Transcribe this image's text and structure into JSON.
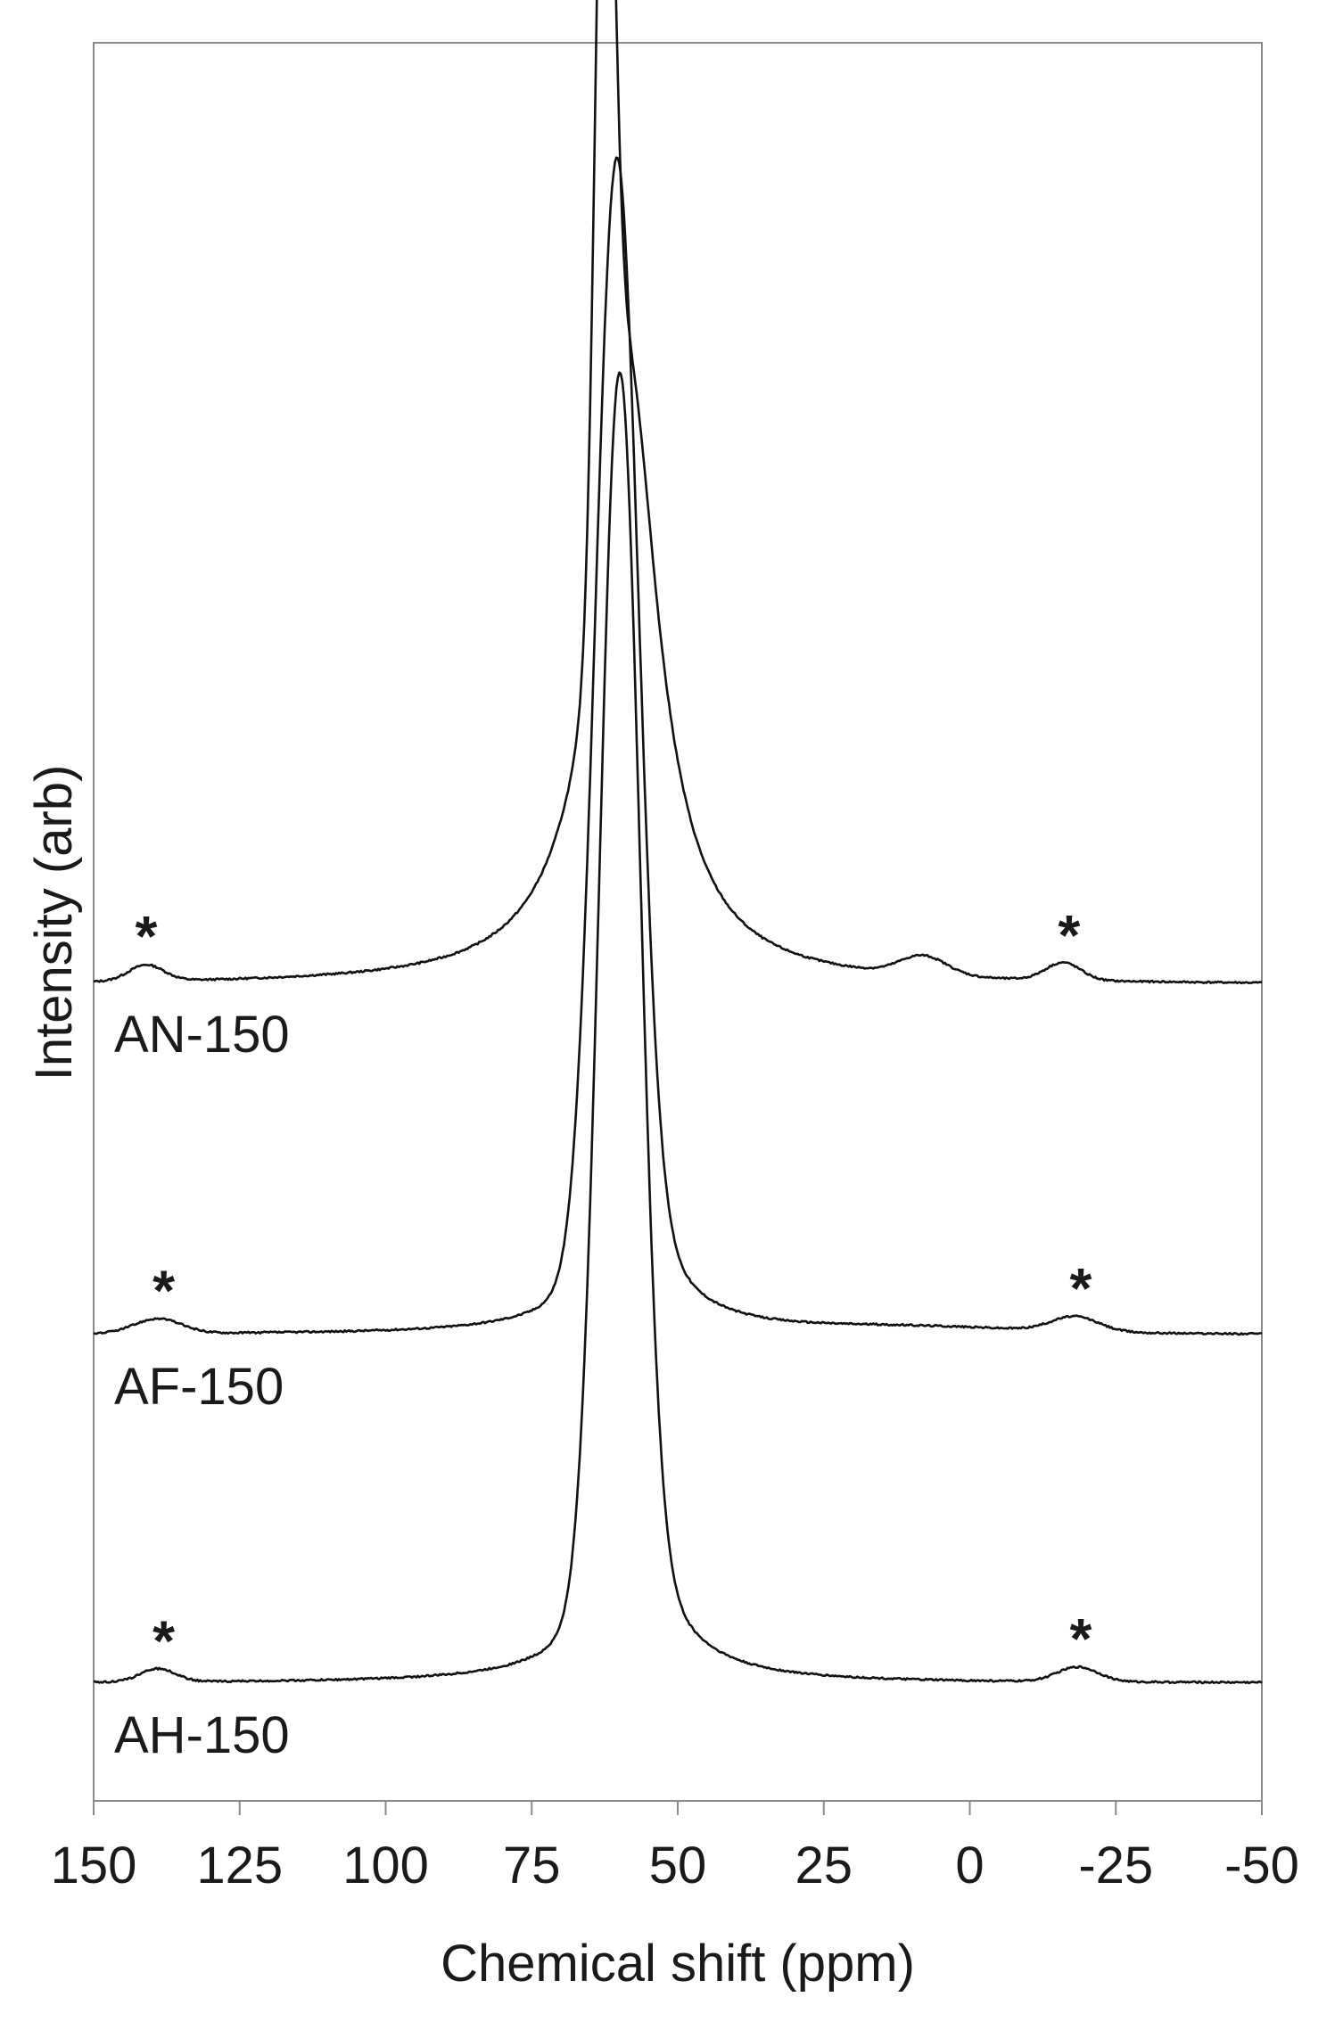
{
  "chart_data": {
    "type": "line",
    "title": "",
    "xlabel": "Chemical shift (ppm)",
    "ylabel": "Intensity (arb)",
    "xlim": [
      150,
      -50
    ],
    "x_reversed": true,
    "x_ticks": [
      150,
      125,
      100,
      75,
      50,
      25,
      0,
      -25,
      -50
    ],
    "x_tick_labels": [
      "150",
      "125",
      "100",
      "75",
      "50",
      "25",
      "0",
      "-25",
      "-50"
    ],
    "y_ticks": [],
    "grid": false,
    "legend": "none (labels placed under each trace)",
    "line_color": "#111111",
    "series": [
      {
        "name": "AN-150",
        "stack_index": 2,
        "peaks": [
          {
            "center": 62.5,
            "height": 0.58,
            "width": 1.6,
            "shape": "gauss"
          },
          {
            "center": 58.5,
            "height": 0.34,
            "width": 6.0,
            "shape": "lorentz"
          },
          {
            "center": 60.0,
            "height": 0.09,
            "width": 9.0,
            "shape": "lorentz"
          },
          {
            "center": 8.0,
            "height": 0.013,
            "width": 4.0,
            "shape": "gauss"
          },
          {
            "center": -16.0,
            "height": 0.012,
            "width": 3.0,
            "shape": "gauss"
          },
          {
            "center": 141.0,
            "height": 0.011,
            "width": 3.0,
            "shape": "gauss"
          }
        ],
        "spinning_sidebands_ppm": [
          141,
          -17
        ]
      },
      {
        "name": "AF-150",
        "stack_index": 1,
        "peaks": [
          {
            "center": 60.5,
            "height": 0.72,
            "width": 3.6,
            "shape": "gauss"
          },
          {
            "center": 58.0,
            "height": 0.09,
            "width": 8.0,
            "shape": "lorentz"
          },
          {
            "center": 10.0,
            "height": 0.004,
            "width": 20.0,
            "shape": "gauss"
          },
          {
            "center": -18.0,
            "height": 0.01,
            "width": 4.0,
            "shape": "gauss"
          },
          {
            "center": 139.0,
            "height": 0.01,
            "width": 4.0,
            "shape": "gauss"
          }
        ],
        "spinning_sidebands_ppm": [
          138,
          -19
        ]
      },
      {
        "name": "AH-150",
        "stack_index": 0,
        "peaks": [
          {
            "center": 60.0,
            "height": 0.8,
            "width": 3.4,
            "shape": "gauss"
          },
          {
            "center": 58.0,
            "height": 0.1,
            "width": 8.0,
            "shape": "lorentz"
          },
          {
            "center": -18.5,
            "height": 0.01,
            "width": 3.5,
            "shape": "gauss"
          },
          {
            "center": 139.0,
            "height": 0.009,
            "width": 3.0,
            "shape": "gauss"
          }
        ],
        "spinning_sidebands_ppm": [
          138,
          -19
        ]
      }
    ]
  }
}
